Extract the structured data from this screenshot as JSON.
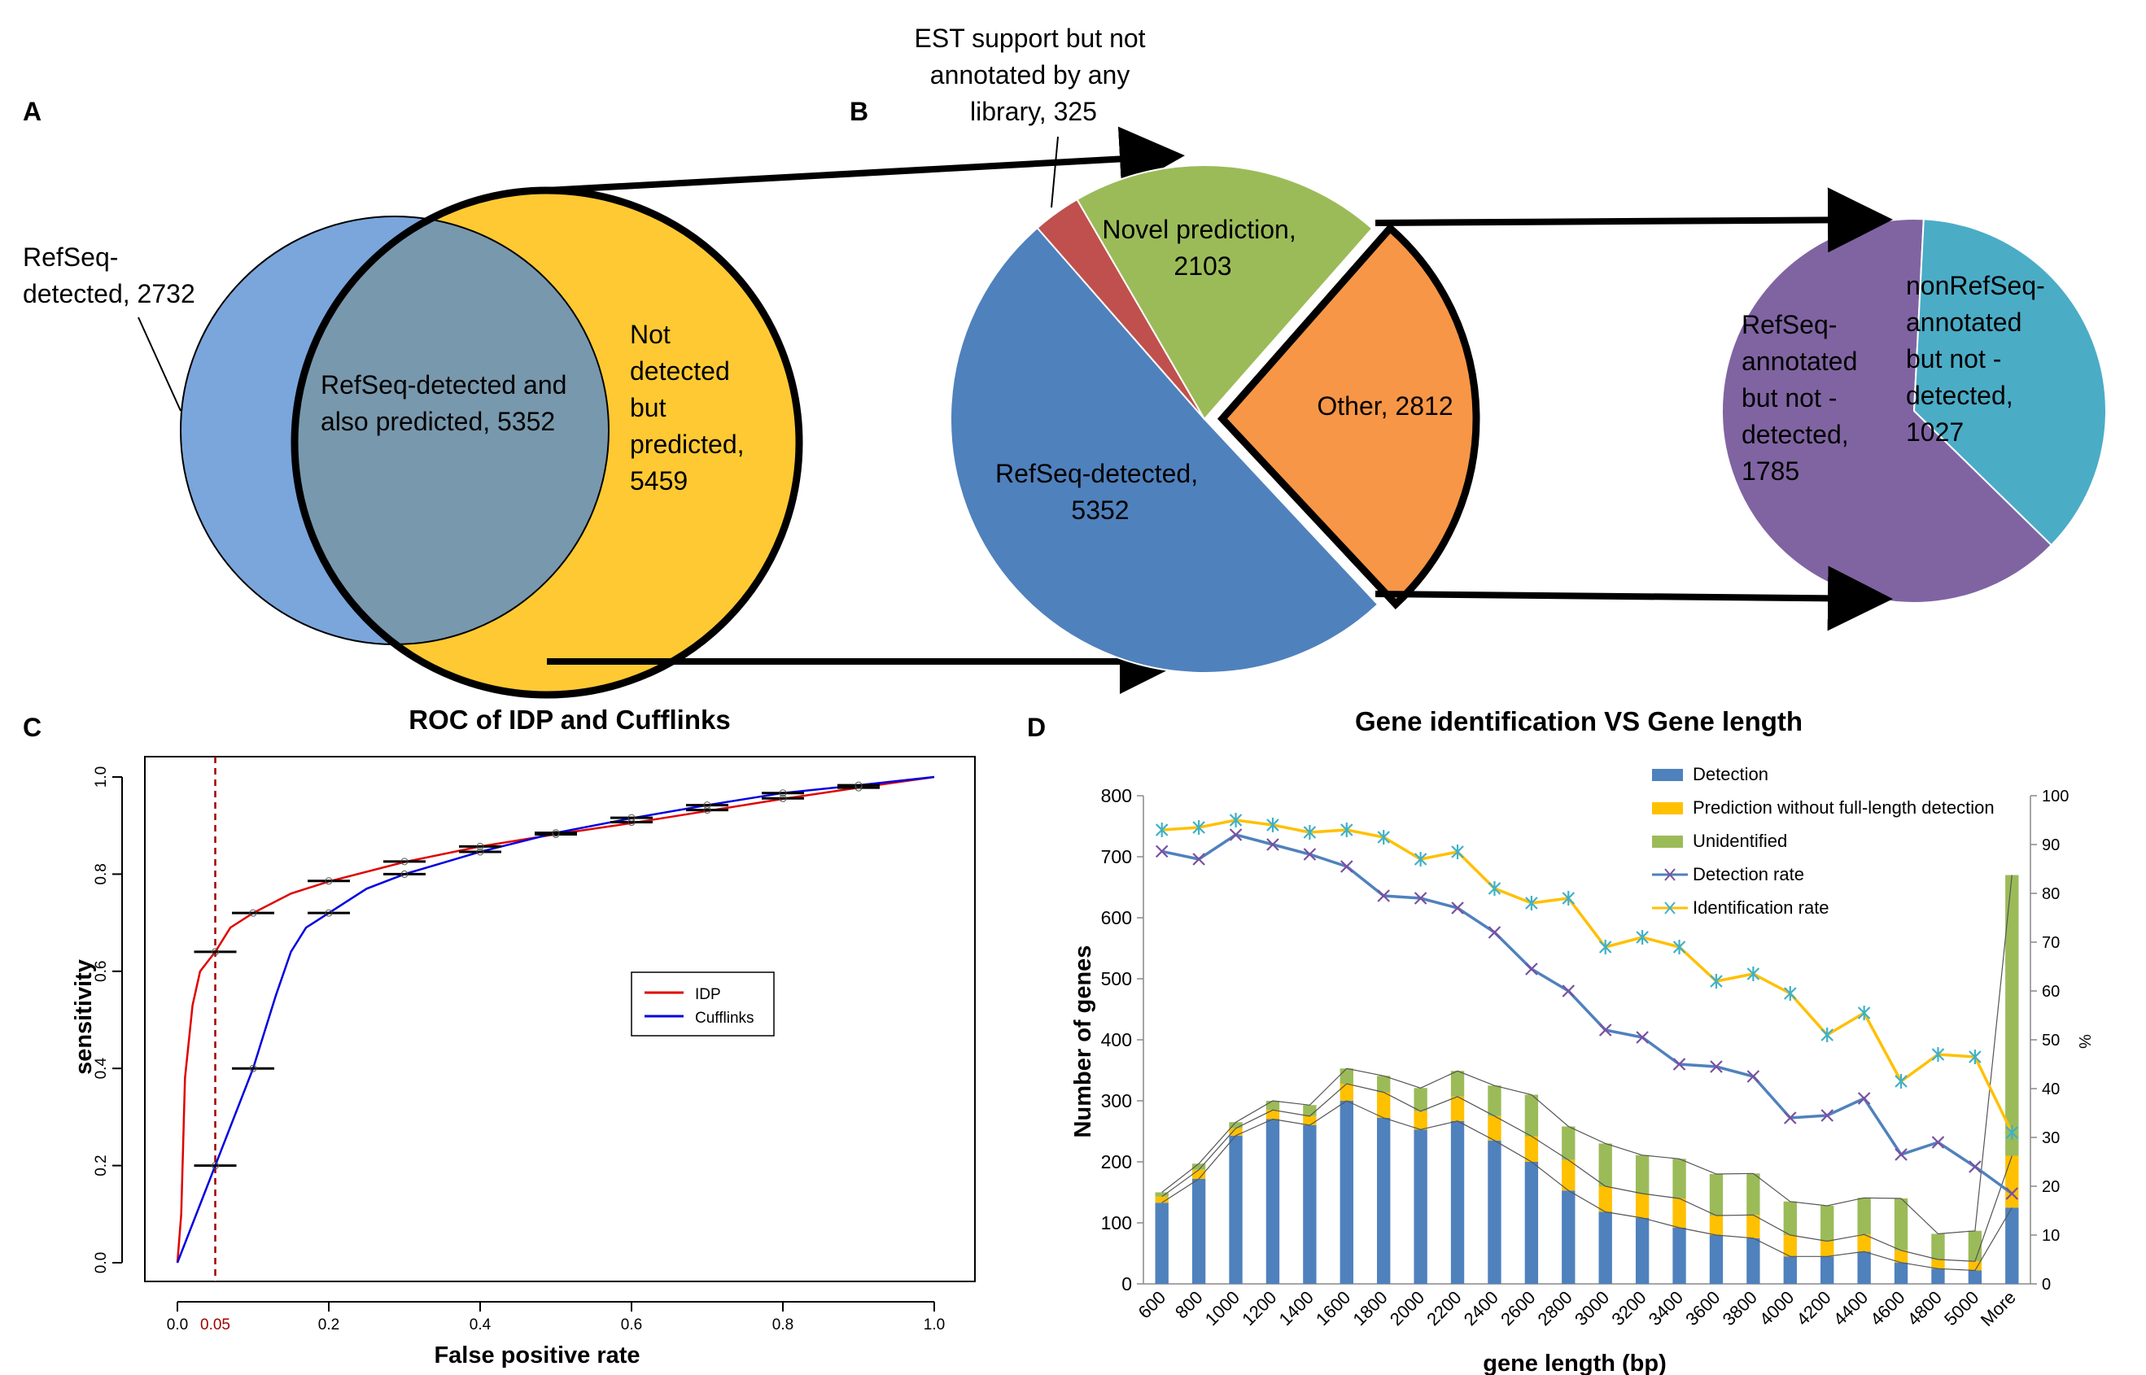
{
  "panel_a": {
    "letter": "A",
    "left_label": [
      "RefSeq-",
      "detected, 2732"
    ],
    "overlap_label": [
      "RefSeq-detected and",
      "also predicted, 5352"
    ],
    "right_label": [
      "Not",
      "detected",
      "but",
      "predicted,",
      "5459"
    ],
    "colors": {
      "left": "#7aa6dc",
      "right": "#ffc933",
      "overlap": "#7898ad"
    }
  },
  "panel_b": {
    "letter": "B",
    "slices": [
      {
        "name": "RefSeq-detected, 5352",
        "label": [
          "RefSeq-detected,",
          "5352"
        ],
        "value": 5352,
        "color": "#4f81bd"
      },
      {
        "name": "EST support but not annotated by any library, 325",
        "label": [
          "EST support but not",
          "annotated by any",
          "library, 325"
        ],
        "value": 325,
        "color": "#c0504d"
      },
      {
        "name": "Novel prediction, 2103",
        "label": [
          "Novel prediction,",
          "2103"
        ],
        "value": 2103,
        "color": "#9bbb59"
      },
      {
        "name": "Other, 2812",
        "label": [
          "Other, 2812"
        ],
        "value": 2812,
        "color": "#f79646"
      }
    ],
    "sub_slices": [
      {
        "label": [
          "RefSeq-",
          "annotated",
          "but not -",
          "detected,",
          "1785"
        ],
        "value": 1785,
        "color": "#8064a2"
      },
      {
        "label": [
          "nonRefSeq-",
          "annotated",
          "but not -",
          "detected,",
          "1027"
        ],
        "value": 1027,
        "color": "#4bacc6"
      }
    ]
  },
  "chart_data": [
    {
      "panel": "C",
      "type": "line",
      "title": "ROC of IDP and Cufflinks",
      "xlabel": "False positive rate",
      "ylabel": "sensitivity",
      "xlim": [
        0,
        1
      ],
      "ylim": [
        0,
        1
      ],
      "xticks": [
        "0.0",
        "0.2",
        "0.4",
        "0.6",
        "0.8",
        "1.0"
      ],
      "yticks": [
        "0.0",
        "0.2",
        "0.4",
        "0.6",
        "0.8",
        "1.0"
      ],
      "marked_x": "0.05",
      "legend_position": "center-right",
      "series": [
        {
          "name": "IDP",
          "color": "#e00000",
          "x": [
            0.0,
            0.005,
            0.01,
            0.02,
            0.03,
            0.05,
            0.07,
            0.1,
            0.15,
            0.2,
            0.3,
            0.4,
            0.5,
            0.6,
            0.7,
            0.8,
            0.9,
            1.0
          ],
          "y": [
            0.0,
            0.1,
            0.38,
            0.53,
            0.6,
            0.64,
            0.69,
            0.72,
            0.76,
            0.785,
            0.825,
            0.857,
            0.882,
            0.905,
            0.93,
            0.955,
            0.978,
            1.0
          ]
        },
        {
          "name": "Cufflinks",
          "color": "#0000e0",
          "x": [
            0.0,
            0.05,
            0.1,
            0.13,
            0.15,
            0.17,
            0.2,
            0.25,
            0.3,
            0.4,
            0.5,
            0.6,
            0.7,
            0.8,
            0.9,
            1.0
          ],
          "y": [
            0.0,
            0.2,
            0.4,
            0.55,
            0.64,
            0.69,
            0.72,
            0.77,
            0.8,
            0.846,
            0.885,
            0.915,
            0.942,
            0.967,
            0.983,
            1.0
          ]
        }
      ],
      "error_bars": [
        {
          "x": 0.05,
          "y": 0.64
        },
        {
          "x": 0.1,
          "y": 0.72
        },
        {
          "x": 0.2,
          "y": 0.786
        },
        {
          "x": 0.3,
          "y": 0.826
        },
        {
          "x": 0.4,
          "y": 0.857
        },
        {
          "x": 0.5,
          "y": 0.882
        },
        {
          "x": 0.6,
          "y": 0.907
        },
        {
          "x": 0.7,
          "y": 0.932
        },
        {
          "x": 0.8,
          "y": 0.956
        },
        {
          "x": 0.9,
          "y": 0.978
        },
        {
          "x": 0.05,
          "y": 0.2
        },
        {
          "x": 0.1,
          "y": 0.4
        },
        {
          "x": 0.2,
          "y": 0.72
        },
        {
          "x": 0.3,
          "y": 0.8
        },
        {
          "x": 0.4,
          "y": 0.846
        },
        {
          "x": 0.5,
          "y": 0.885
        },
        {
          "x": 0.6,
          "y": 0.916
        },
        {
          "x": 0.7,
          "y": 0.942
        },
        {
          "x": 0.8,
          "y": 0.967
        },
        {
          "x": 0.9,
          "y": 0.983
        }
      ]
    },
    {
      "panel": "D",
      "type": "bar",
      "stacked": true,
      "title": "Gene identification VS Gene length",
      "xlabel": "gene length (bp)",
      "ylabel": "Number of genes",
      "y2label": "%",
      "ylim": [
        0,
        800
      ],
      "y2lim": [
        0,
        100
      ],
      "yticks": [
        "0",
        "100",
        "200",
        "300",
        "400",
        "500",
        "600",
        "700",
        "800"
      ],
      "y2ticks": [
        "0",
        "10",
        "20",
        "30",
        "40",
        "50",
        "60",
        "70",
        "80",
        "90",
        "100"
      ],
      "categories": [
        "600",
        "800",
        "1000",
        "1200",
        "1400",
        "1600",
        "1800",
        "2000",
        "2200",
        "2400",
        "2600",
        "2800",
        "3000",
        "3200",
        "3400",
        "3600",
        "3800",
        "4000",
        "4200",
        "4400",
        "4600",
        "4800",
        "5000",
        "More"
      ],
      "legend_position": "top-right",
      "series": [
        {
          "name": "Detection",
          "color": "#4f81bd",
          "axis": "left",
          "values": [
            133,
            172,
            243,
            270,
            260,
            300,
            272,
            253,
            267,
            235,
            200,
            153,
            118,
            108,
            92,
            80,
            75,
            45,
            45,
            53,
            35,
            25,
            22,
            125
          ]
        },
        {
          "name": "Prediction without full-length detection",
          "color": "#ffc000",
          "axis": "left",
          "values": [
            10,
            15,
            12,
            15,
            15,
            28,
            42,
            30,
            40,
            40,
            42,
            50,
            42,
            40,
            48,
            32,
            38,
            35,
            25,
            28,
            20,
            15,
            15,
            85
          ]
        },
        {
          "name": "Unidentified",
          "color": "#9bbb59",
          "axis": "left",
          "values": [
            7,
            10,
            10,
            15,
            18,
            25,
            27,
            38,
            42,
            50,
            68,
            55,
            70,
            63,
            65,
            68,
            68,
            55,
            58,
            60,
            85,
            42,
            50,
            460
          ]
        },
        {
          "name": "Detection rate",
          "color": "#4f81bd",
          "axis": "right",
          "marker": "x",
          "values": [
            88.6,
            87,
            92,
            90,
            88,
            85.5,
            79.5,
            79,
            77,
            72,
            64.5,
            60,
            52,
            50.5,
            45,
            44.5,
            42.5,
            34,
            34.5,
            38,
            26.5,
            29,
            24,
            18.5
          ]
        },
        {
          "name": "Identification rate",
          "color": "#ffc000",
          "axis": "right",
          "marker": "*",
          "values": [
            93,
            93.5,
            95,
            94,
            92.5,
            93,
            91.5,
            87,
            88.5,
            81,
            78,
            79,
            69,
            71,
            69,
            62,
            63.5,
            59.5,
            51,
            55.5,
            41.5,
            47,
            46.5,
            31
          ]
        }
      ]
    }
  ],
  "panel_labels": {
    "c": "C",
    "d": "D"
  }
}
